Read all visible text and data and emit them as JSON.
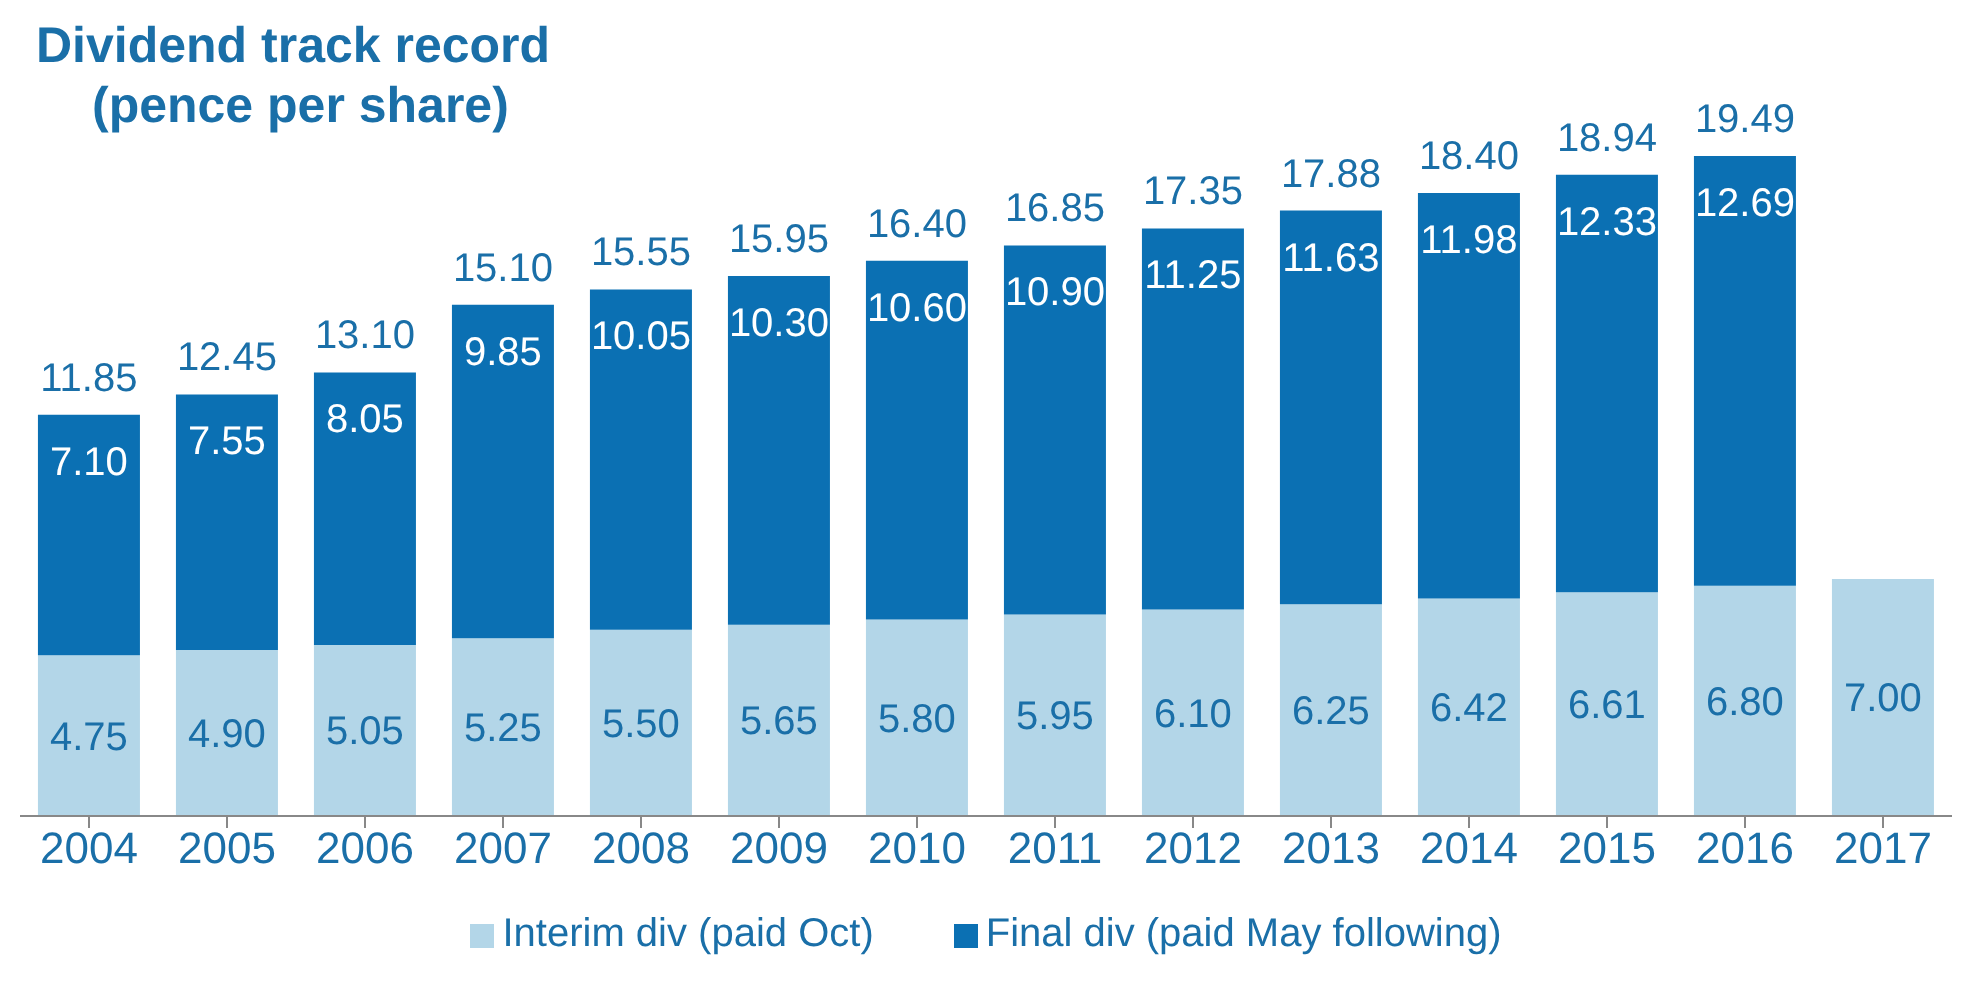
{
  "chart_data": {
    "type": "bar",
    "title": "Dividend track record\n(pence per share)",
    "categories": [
      "2004",
      "2005",
      "2006",
      "2007",
      "2008",
      "2009",
      "2010",
      "2011",
      "2012",
      "2013",
      "2014",
      "2015",
      "2016",
      "2017"
    ],
    "stacked": true,
    "legend": "bottom",
    "grid": false,
    "series": [
      {
        "name": "Interim div (paid Oct)",
        "color": "#b3d6e8",
        "values": [
          4.75,
          4.9,
          5.05,
          5.25,
          5.5,
          5.65,
          5.8,
          5.95,
          6.1,
          6.25,
          6.42,
          6.61,
          6.8,
          7.0
        ],
        "value_labels": [
          "4.75",
          "4.90",
          "5.05",
          "5.25",
          "5.50",
          "5.65",
          "5.80",
          "5.95",
          "6.10",
          "6.25",
          "6.42",
          "6.61",
          "6.80",
          "7.00"
        ]
      },
      {
        "name": "Final div (paid May following)",
        "color": "#0b70b3",
        "values": [
          7.1,
          7.55,
          8.05,
          9.85,
          10.05,
          10.3,
          10.6,
          10.9,
          11.25,
          11.63,
          11.98,
          12.33,
          12.69,
          null
        ],
        "value_labels": [
          "7.10",
          "7.55",
          "8.05",
          "9.85",
          "10.05",
          "10.30",
          "10.60",
          "10.90",
          "11.25",
          "11.63",
          "11.98",
          "12.33",
          "12.69",
          null
        ]
      }
    ],
    "totals": [
      "11.85",
      "12.45",
      "13.10",
      "15.10",
      "15.55",
      "15.95",
      "16.40",
      "16.85",
      "17.35",
      "17.88",
      "18.40",
      "18.94",
      "19.49",
      null
    ]
  }
}
